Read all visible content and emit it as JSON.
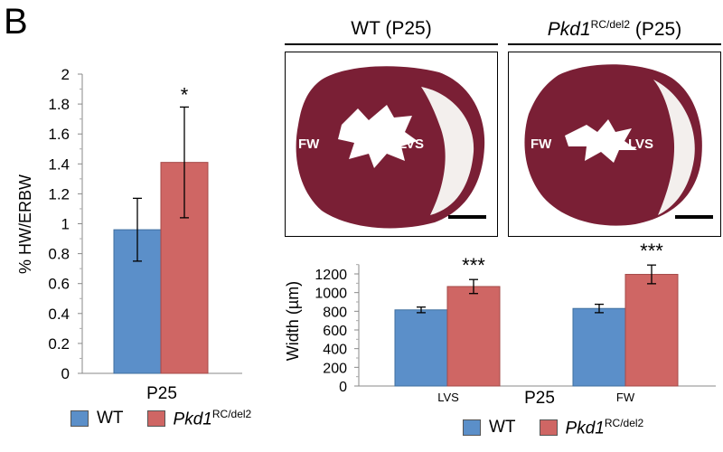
{
  "panel_letter": "B",
  "colors": {
    "wt": "#5b8fc9",
    "pkd1": "#cf6664",
    "tissue": "#7a1f35"
  },
  "micrographs": [
    {
      "title_plain": "WT (P25)",
      "title_italic": "",
      "title_sup": "",
      "title_tail": "",
      "label_fw": "FW",
      "label_lvs": "LVS"
    },
    {
      "title_plain": "",
      "title_italic": "Pkd1",
      "title_sup": "RC/del2",
      "title_tail": " (P25)",
      "label_fw": "FW",
      "label_lvs": "LVS"
    }
  ],
  "legend": {
    "wt": "WT",
    "pkd1_italic": "Pkd1",
    "pkd1_sup": "RC/del2"
  },
  "chart_data": [
    {
      "type": "bar",
      "categories": [
        "P25"
      ],
      "series": [
        {
          "name": "WT",
          "values": [
            0.96
          ],
          "error": [
            0.21
          ]
        },
        {
          "name": "Pkd1RC/del2",
          "values": [
            1.41
          ],
          "error": [
            0.37
          ]
        }
      ],
      "annotations": [
        {
          "series": "Pkd1RC/del2",
          "category": "P25",
          "text": "*"
        }
      ],
      "ylabel": "% HW/ERBW",
      "ylim": [
        0,
        2
      ],
      "yticks": [
        "0",
        "0.2",
        "0.4",
        "0.6",
        "0.8",
        "1",
        "1.2",
        "1.4",
        "1.6",
        "1.8",
        "2"
      ],
      "xlabel": "",
      "grid": false,
      "legend_position": "bottom"
    },
    {
      "type": "bar",
      "categories": [
        "LVS",
        "FW"
      ],
      "series": [
        {
          "name": "WT",
          "values": [
            815,
            830
          ],
          "error": [
            30,
            45
          ]
        },
        {
          "name": "Pkd1RC/del2",
          "values": [
            1065,
            1195
          ],
          "error": [
            75,
            100
          ]
        }
      ],
      "annotations": [
        {
          "series": "Pkd1RC/del2",
          "category": "LVS",
          "text": "***"
        },
        {
          "series": "Pkd1RC/del2",
          "category": "FW",
          "text": "***"
        }
      ],
      "xlabel": "P25",
      "ylabel": "Width (µm)",
      "ylim": [
        0,
        1300
      ],
      "yticks": [
        "0",
        "200",
        "400",
        "600",
        "800",
        "1000",
        "1200"
      ],
      "grid": false,
      "legend_position": "bottom"
    }
  ]
}
